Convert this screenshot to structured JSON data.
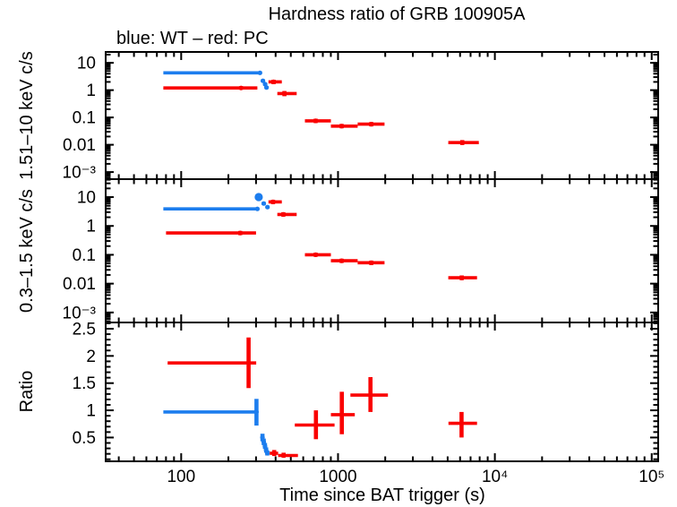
{
  "chart_data": {
    "type": "errorbar",
    "title": "Hardness ratio of GRB 100905A",
    "subtitle": "blue: WT – red: PC",
    "xlabel": "Time since BAT trigger (s)",
    "x_scale": "log",
    "xlim": [
      33,
      110000
    ],
    "x_major_ticks": [
      100,
      1000,
      10000,
      100000
    ],
    "x_tick_labels": [
      "100",
      "1000",
      "10⁴",
      "10⁵"
    ],
    "legend": {
      "blue_series": "WT",
      "red_series": "PC"
    },
    "colors": {
      "wt_blue": "#1c7dee",
      "pc_red": "#fa0000"
    },
    "grid": false,
    "panels": [
      {
        "name": "hard-band",
        "ylabel": "1.51–10 keV c/s",
        "y_scale": "log",
        "ylim": [
          0.00055,
          25
        ],
        "ytick_values": [
          10,
          1,
          0.1,
          0.01,
          0.001
        ],
        "ytick_labels": [
          "10",
          "1",
          "0.1",
          "0.01",
          "10⁻³"
        ],
        "series": [
          {
            "name": "WT",
            "color": "wt_blue",
            "points": [
              {
                "t": 318,
                "t_lo": 77,
                "t_hi": 322,
                "y": 4.3,
                "y_lo": 3.8,
                "y_hi": 4.9
              },
              {
                "t": 332,
                "t_lo": 328,
                "t_hi": 337,
                "y": 2.2,
                "y_lo": 1.95,
                "y_hi": 2.5
              },
              {
                "t": 343,
                "t_lo": 339,
                "t_hi": 348,
                "y": 1.65,
                "y_lo": 1.45,
                "y_hi": 1.85
              },
              {
                "t": 350,
                "t_lo": 346,
                "t_hi": 355,
                "y": 1.25,
                "y_lo": 1.1,
                "y_hi": 1.42
              }
            ]
          },
          {
            "name": "PC",
            "color": "pc_red",
            "points": [
              {
                "t": 241,
                "t_lo": 77,
                "t_hi": 306,
                "y": 1.2,
                "y_lo": 1.03,
                "y_hi": 1.4
              },
              {
                "t": 388,
                "t_lo": 360,
                "t_hi": 438,
                "y": 2.0,
                "y_lo": 1.65,
                "y_hi": 2.4
              },
              {
                "t": 455,
                "t_lo": 410,
                "t_hi": 545,
                "y": 0.75,
                "y_lo": 0.6,
                "y_hi": 0.93
              },
              {
                "t": 720,
                "t_lo": 615,
                "t_hi": 900,
                "y": 0.075,
                "y_lo": 0.062,
                "y_hi": 0.09
              },
              {
                "t": 1055,
                "t_lo": 900,
                "t_hi": 1335,
                "y": 0.048,
                "y_lo": 0.04,
                "y_hi": 0.058
              },
              {
                "t": 1630,
                "t_lo": 1335,
                "t_hi": 1980,
                "y": 0.057,
                "y_lo": 0.047,
                "y_hi": 0.068
              },
              {
                "t": 6200,
                "t_lo": 5050,
                "t_hi": 7900,
                "y": 0.012,
                "y_lo": 0.0098,
                "y_hi": 0.0148
              }
            ]
          }
        ]
      },
      {
        "name": "soft-band",
        "ylabel": "0.3–1.5 keV c/s",
        "y_scale": "log",
        "ylim": [
          0.00045,
          41.9
        ],
        "ytick_values": [
          10,
          1,
          0.1,
          0.01,
          0.001
        ],
        "ytick_labels": [
          "10",
          "1",
          "0.1",
          "0.01",
          "10⁻³"
        ],
        "series": [
          {
            "name": "WT",
            "color": "wt_blue",
            "points": [
              {
                "t": 306,
                "t_lo": 77,
                "t_hi": 311,
                "y": 3.9,
                "y_lo": 3.5,
                "y_hi": 4.35
              },
              {
                "t": 312,
                "t_lo": 308,
                "t_hi": 317,
                "y": 10.0,
                "y_lo": 9.0,
                "y_hi": 11.1,
                "big": true
              },
              {
                "t": 336,
                "t_lo": 331,
                "t_hi": 341,
                "y": 6.0,
                "y_lo": 5.3,
                "y_hi": 6.8
              },
              {
                "t": 355,
                "t_lo": 350,
                "t_hi": 360,
                "y": 4.5,
                "y_lo": 4.0,
                "y_hi": 5.05
              }
            ]
          },
          {
            "name": "PC",
            "color": "pc_red",
            "points": [
              {
                "t": 238,
                "t_lo": 80,
                "t_hi": 300,
                "y": 0.57,
                "y_lo": 0.48,
                "y_hi": 0.67
              },
              {
                "t": 385,
                "t_lo": 360,
                "t_hi": 438,
                "y": 6.8,
                "y_lo": 5.7,
                "y_hi": 8.1
              },
              {
                "t": 448,
                "t_lo": 410,
                "t_hi": 545,
                "y": 2.5,
                "y_lo": 2.1,
                "y_hi": 3.0
              },
              {
                "t": 720,
                "t_lo": 615,
                "t_hi": 900,
                "y": 0.1,
                "y_lo": 0.085,
                "y_hi": 0.118
              },
              {
                "t": 1055,
                "t_lo": 900,
                "t_hi": 1335,
                "y": 0.062,
                "y_lo": 0.052,
                "y_hi": 0.073
              },
              {
                "t": 1630,
                "t_lo": 1335,
                "t_hi": 1980,
                "y": 0.053,
                "y_lo": 0.044,
                "y_hi": 0.063
              },
              {
                "t": 6150,
                "t_lo": 5050,
                "t_hi": 7700,
                "y": 0.016,
                "y_lo": 0.0132,
                "y_hi": 0.0192
              }
            ]
          }
        ]
      },
      {
        "name": "ratio",
        "ylabel": "Ratio",
        "y_scale": "linear",
        "ylim": [
          0.0625,
          2.615
        ],
        "ytick_values": [
          0.5,
          1,
          1.5,
          2,
          2.5
        ],
        "ytick_labels": [
          "0.5",
          "1",
          "1.5",
          "2",
          "2.5"
        ],
        "minor_step": 0.1,
        "series": [
          {
            "name": "WT",
            "color": "wt_blue",
            "points": [
              {
                "t": 302,
                "t_lo": 77,
                "t_hi": 307,
                "y": 0.97,
                "y_lo": 0.72,
                "y_hi": 1.21
              },
              {
                "t": 330,
                "t_lo": 326,
                "t_hi": 334,
                "y": 0.5,
                "y_lo": 0.43,
                "y_hi": 0.57
              },
              {
                "t": 336,
                "t_lo": 332,
                "t_hi": 340,
                "y": 0.42,
                "y_lo": 0.36,
                "y_hi": 0.48
              },
              {
                "t": 342,
                "t_lo": 338,
                "t_hi": 346,
                "y": 0.34,
                "y_lo": 0.29,
                "y_hi": 0.4
              },
              {
                "t": 348,
                "t_lo": 344,
                "t_hi": 352,
                "y": 0.27,
                "y_lo": 0.22,
                "y_hi": 0.32
              },
              {
                "t": 354,
                "t_lo": 350,
                "t_hi": 358,
                "y": 0.21,
                "y_lo": 0.17,
                "y_hi": 0.26
              }
            ]
          },
          {
            "name": "PC",
            "color": "pc_red",
            "points": [
              {
                "t": 269,
                "t_lo": 82,
                "t_hi": 301,
                "y": 1.87,
                "y_lo": 1.41,
                "y_hi": 2.34
              },
              {
                "t": 392,
                "t_lo": 367,
                "t_hi": 415,
                "y": 0.21,
                "y_lo": 0.16,
                "y_hi": 0.27
              },
              {
                "t": 450,
                "t_lo": 415,
                "t_hi": 555,
                "y": 0.17,
                "y_lo": 0.13,
                "y_hi": 0.22
              },
              {
                "t": 723,
                "t_lo": 530,
                "t_hi": 950,
                "y": 0.73,
                "y_lo": 0.47,
                "y_hi": 1.0
              },
              {
                "t": 1057,
                "t_lo": 900,
                "t_hi": 1280,
                "y": 0.92,
                "y_lo": 0.56,
                "y_hi": 1.34
              },
              {
                "t": 1610,
                "t_lo": 1200,
                "t_hi": 2080,
                "y": 1.28,
                "y_lo": 0.97,
                "y_hi": 1.61
              },
              {
                "t": 6130,
                "t_lo": 5060,
                "t_hi": 7700,
                "y": 0.76,
                "y_lo": 0.5,
                "y_hi": 0.97
              }
            ]
          }
        ]
      }
    ]
  }
}
